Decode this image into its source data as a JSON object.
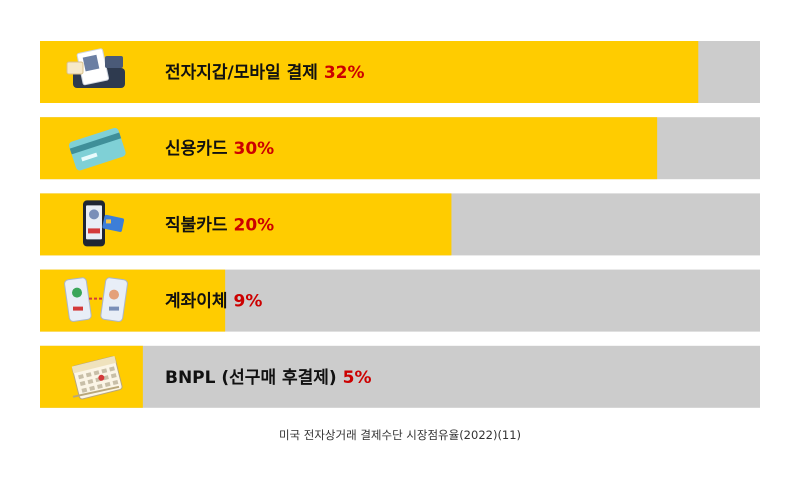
{
  "chart_data": {
    "type": "bar",
    "orientation": "horizontal",
    "categories": [
      "전자지갑/모바일 결제",
      "신용카드",
      "직불카드",
      "계좌이체",
      "BNPL (선구매 후결제)"
    ],
    "values": [
      32,
      30,
      20,
      9,
      5
    ],
    "value_labels": [
      "32%",
      "30%",
      "20%",
      "9%",
      "5%"
    ],
    "icons": [
      "pos-terminal-qr-icon",
      "credit-card-icon",
      "phone-and-card-icon",
      "phone-transfer-icon",
      "calendar-icon"
    ],
    "xlim": [
      0,
      35
    ],
    "grid": false,
    "legend": "none"
  },
  "colors": {
    "bar": "#ffcc00",
    "track": "#cccccc",
    "label": "#111111",
    "value": "#cc0000"
  },
  "caption": "미국 전자상거래 결제수단 시장점유율(2022)(11)"
}
